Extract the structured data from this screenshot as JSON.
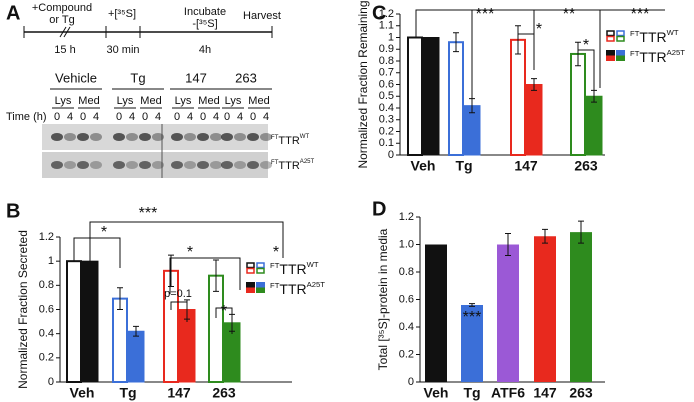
{
  "panel_a": {
    "letter": "A",
    "compound": [
      "+Compound",
      "or Tg"
    ],
    "label35": "+[³⁵S]",
    "incubate": [
      "Incubate",
      "-[³⁵S]"
    ],
    "harvest": "Harvest",
    "durations": [
      "15 h",
      "30 min",
      "4h"
    ],
    "conditions": [
      "Vehicle",
      "Tg",
      "147",
      "263"
    ],
    "condition_colors": [
      "#111111",
      "#3b6fd8",
      "#e8291e",
      "#2e8b1e"
    ],
    "fractions": [
      "Lys",
      "Med",
      "Lys",
      "Med",
      "Lys",
      "Med",
      "Lys",
      "Med"
    ],
    "time_label": "Time (h)",
    "times": [
      0,
      4,
      0,
      4,
      0,
      4,
      0,
      4,
      0,
      4,
      0,
      4,
      0,
      4,
      0,
      4
    ],
    "gel_labels": [
      {
        "prefix": "FT",
        "main": "TTR",
        "suffix": "WT"
      },
      {
        "prefix": "FT",
        "main": "TTR",
        "suffix": "A25T"
      }
    ]
  },
  "chart_data": [
    {
      "type": "bar",
      "letter": "B",
      "ylabel": "Normalized Fraction Secreted",
      "categories": [
        "Veh",
        "Tg",
        "147",
        "263"
      ],
      "colors": [
        "#111111",
        "#3b6fd8",
        "#e8291e",
        "#2e8b1e"
      ],
      "series": [
        {
          "name": {
            "prefix": "FT",
            "main": "TTR",
            "suffix": "WT"
          },
          "style": "outline",
          "values": [
            1.0,
            0.69,
            0.92,
            0.88
          ],
          "errors": [
            null,
            0.09,
            0.13,
            0.13
          ]
        },
        {
          "name": {
            "prefix": "FT",
            "main": "TTR",
            "suffix": "A25T"
          },
          "style": "filled",
          "values": [
            1.0,
            0.42,
            0.6,
            0.49
          ],
          "errors": [
            null,
            0.04,
            0.08,
            0.07
          ]
        }
      ],
      "ylim": [
        0,
        1.2
      ],
      "yticks": [
        0,
        0.2,
        0.4,
        0.6,
        0.8,
        1,
        1.2
      ],
      "annotations": [
        "*",
        "***",
        "*",
        "*",
        "p=0.1",
        "*"
      ]
    },
    {
      "type": "bar",
      "letter": "C",
      "ylabel": "Normalized Fraction Remaining",
      "categories": [
        "Veh",
        "Tg",
        "147",
        "263"
      ],
      "colors": [
        "#111111",
        "#3b6fd8",
        "#e8291e",
        "#2e8b1e"
      ],
      "series": [
        {
          "name": {
            "prefix": "FT",
            "main": "TTR",
            "suffix": "WT"
          },
          "style": "outline",
          "values": [
            1.0,
            0.96,
            0.98,
            0.86
          ],
          "errors": [
            null,
            0.08,
            0.12,
            0.1
          ]
        },
        {
          "name": {
            "prefix": "FT",
            "main": "TTR",
            "suffix": "A25T"
          },
          "style": "filled",
          "values": [
            1.0,
            0.42,
            0.6,
            0.5
          ],
          "errors": [
            null,
            0.06,
            0.05,
            0.05
          ]
        }
      ],
      "ylim": [
        0,
        1.2
      ],
      "yticks": [
        0,
        0.1,
        0.2,
        0.3,
        0.4,
        0.5,
        0.6,
        0.7,
        0.8,
        0.9,
        1,
        1.1,
        1.2
      ],
      "annotations": [
        "***",
        "*",
        "**",
        "***",
        "*"
      ]
    },
    {
      "type": "single-bar",
      "letter": "D",
      "ylabel": "Total [³⁵S]-protein in media",
      "categories": [
        "Veh",
        "Tg",
        "ATF6",
        "147",
        "263"
      ],
      "colors": [
        "#111111",
        "#3b6fd8",
        "#9b59d6",
        "#e8291e",
        "#2e8b1e"
      ],
      "values": [
        1.0,
        0.56,
        1.0,
        1.06,
        1.09
      ],
      "errors": [
        null,
        0.01,
        0.08,
        0.05,
        0.08
      ],
      "ylim": [
        0,
        1.2
      ],
      "yticks": [
        0,
        0.2,
        0.4,
        0.6,
        0.8,
        {
          "value": 1.0,
          "label": "1.0"
        },
        1.2
      ],
      "annotations": [
        "***"
      ]
    }
  ]
}
